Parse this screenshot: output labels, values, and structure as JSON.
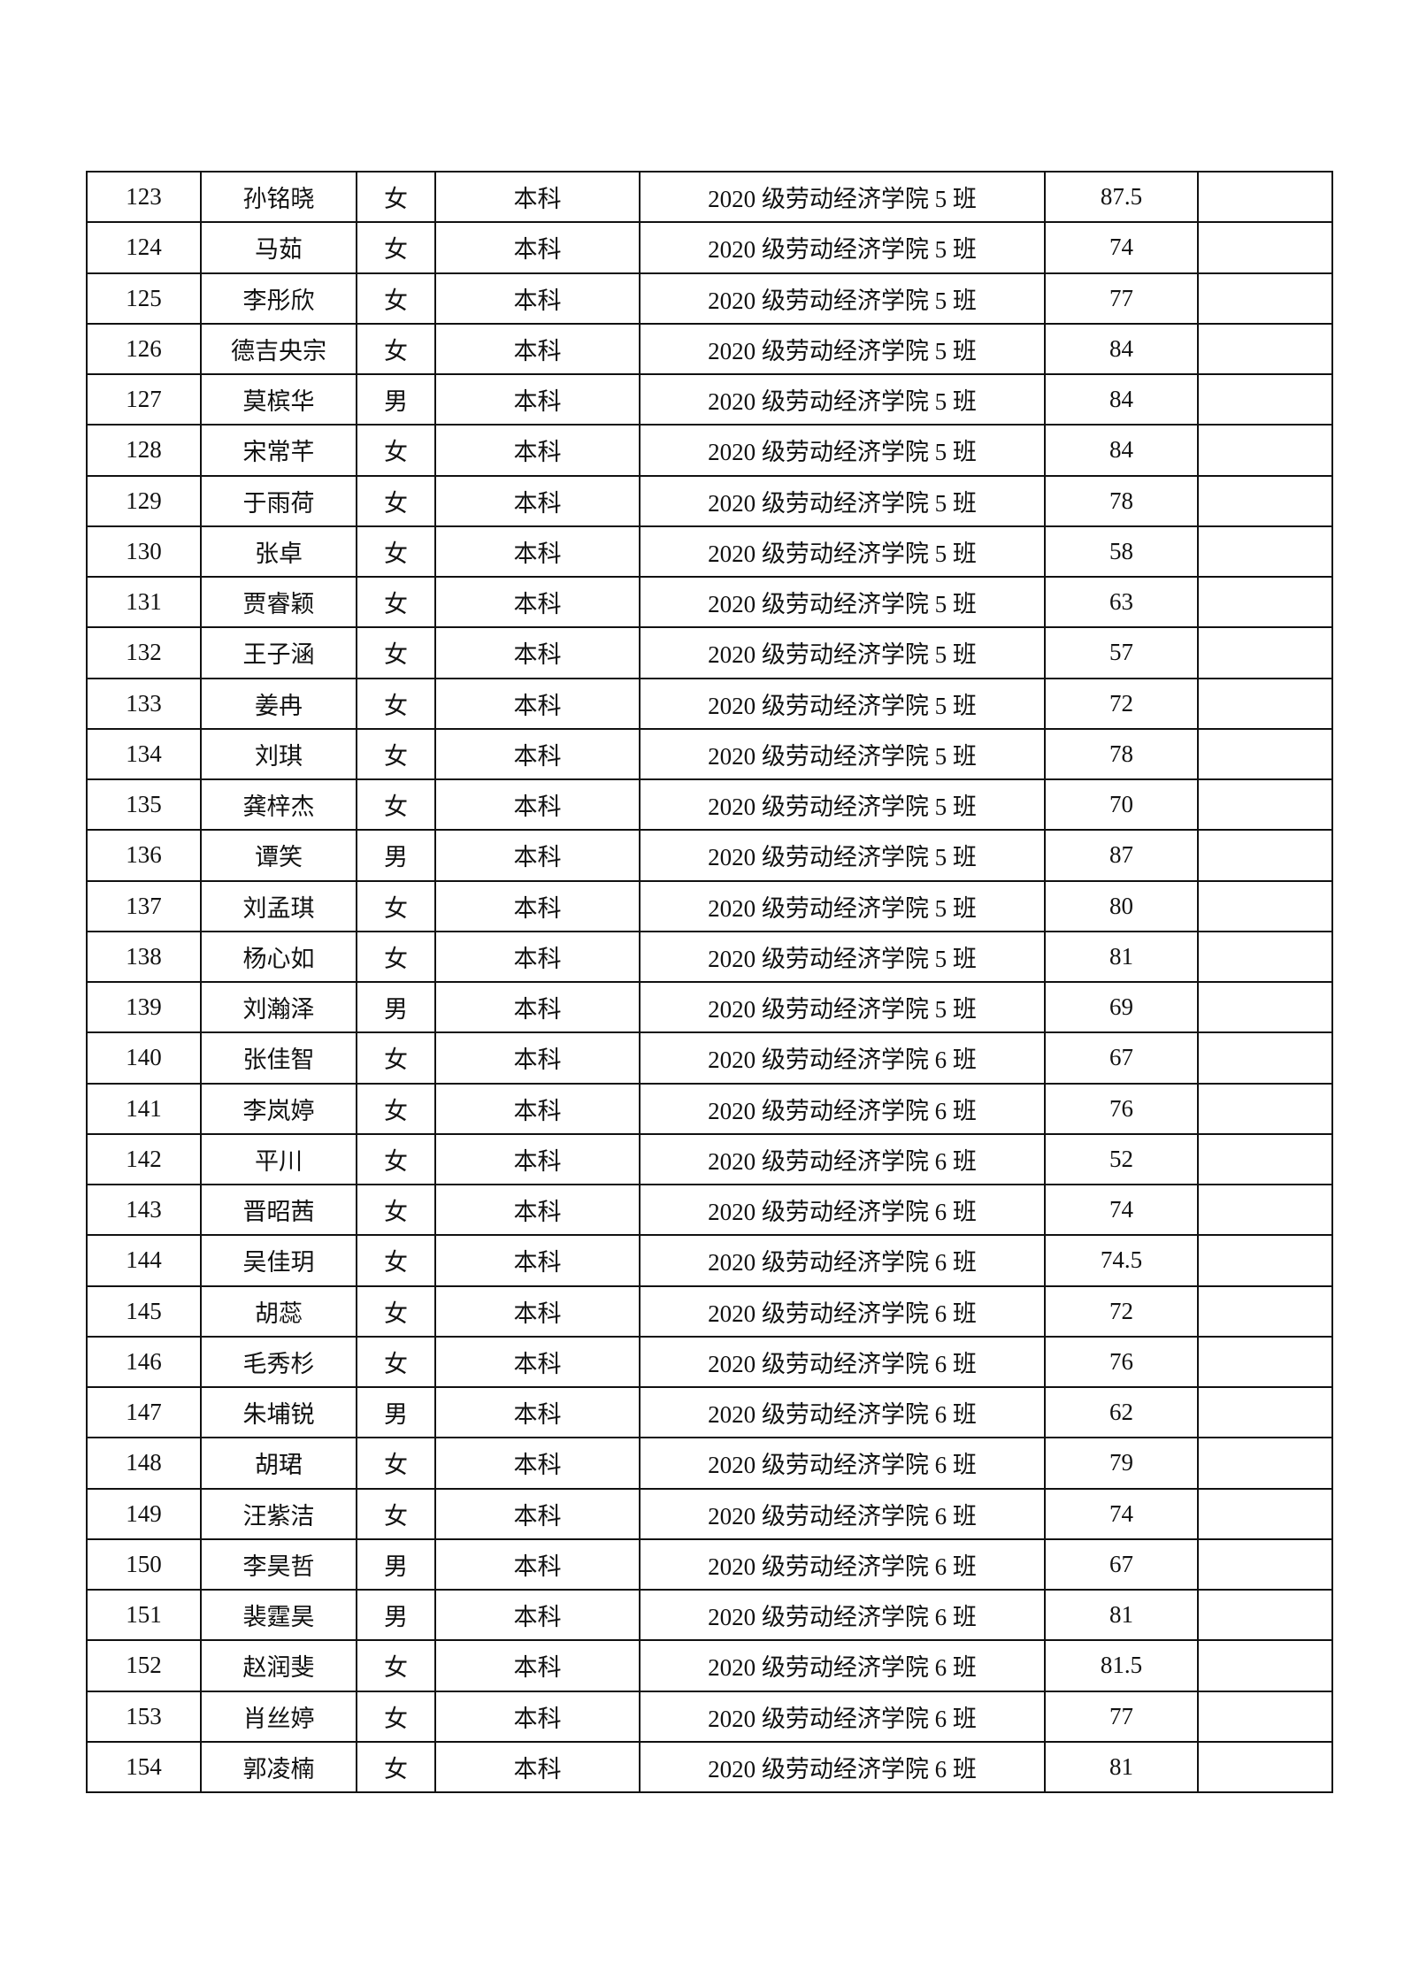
{
  "table": {
    "rows": [
      {
        "no": "123",
        "name": "孙铭晓",
        "gender": "女",
        "degree": "本科",
        "class": "2020 级劳动经济学院 5 班",
        "score": "87.5",
        "note": ""
      },
      {
        "no": "124",
        "name": "马茹",
        "gender": "女",
        "degree": "本科",
        "class": "2020 级劳动经济学院 5 班",
        "score": "74",
        "note": ""
      },
      {
        "no": "125",
        "name": "李彤欣",
        "gender": "女",
        "degree": "本科",
        "class": "2020 级劳动经济学院 5 班",
        "score": "77",
        "note": ""
      },
      {
        "no": "126",
        "name": "德吉央宗",
        "gender": "女",
        "degree": "本科",
        "class": "2020 级劳动经济学院 5 班",
        "score": "84",
        "note": ""
      },
      {
        "no": "127",
        "name": "莫槟华",
        "gender": "男",
        "degree": "本科",
        "class": "2020 级劳动经济学院 5 班",
        "score": "84",
        "note": ""
      },
      {
        "no": "128",
        "name": "宋常芊",
        "gender": "女",
        "degree": "本科",
        "class": "2020 级劳动经济学院 5 班",
        "score": "84",
        "note": ""
      },
      {
        "no": "129",
        "name": "于雨荷",
        "gender": "女",
        "degree": "本科",
        "class": "2020 级劳动经济学院 5 班",
        "score": "78",
        "note": ""
      },
      {
        "no": "130",
        "name": "张卓",
        "gender": "女",
        "degree": "本科",
        "class": "2020 级劳动经济学院 5 班",
        "score": "58",
        "note": ""
      },
      {
        "no": "131",
        "name": "贾睿颖",
        "gender": "女",
        "degree": "本科",
        "class": "2020 级劳动经济学院 5 班",
        "score": "63",
        "note": ""
      },
      {
        "no": "132",
        "name": "王子涵",
        "gender": "女",
        "degree": "本科",
        "class": "2020 级劳动经济学院 5 班",
        "score": "57",
        "note": ""
      },
      {
        "no": "133",
        "name": "姜冉",
        "gender": "女",
        "degree": "本科",
        "class": "2020 级劳动经济学院 5 班",
        "score": "72",
        "note": ""
      },
      {
        "no": "134",
        "name": "刘琪",
        "gender": "女",
        "degree": "本科",
        "class": "2020 级劳动经济学院 5 班",
        "score": "78",
        "note": ""
      },
      {
        "no": "135",
        "name": "龚梓杰",
        "gender": "女",
        "degree": "本科",
        "class": "2020 级劳动经济学院 5 班",
        "score": "70",
        "note": ""
      },
      {
        "no": "136",
        "name": "谭笑",
        "gender": "男",
        "degree": "本科",
        "class": "2020 级劳动经济学院 5 班",
        "score": "87",
        "note": ""
      },
      {
        "no": "137",
        "name": "刘孟琪",
        "gender": "女",
        "degree": "本科",
        "class": "2020 级劳动经济学院 5 班",
        "score": "80",
        "note": ""
      },
      {
        "no": "138",
        "name": "杨心如",
        "gender": "女",
        "degree": "本科",
        "class": "2020 级劳动经济学院 5 班",
        "score": "81",
        "note": ""
      },
      {
        "no": "139",
        "name": "刘瀚泽",
        "gender": "男",
        "degree": "本科",
        "class": "2020 级劳动经济学院 5 班",
        "score": "69",
        "note": ""
      },
      {
        "no": "140",
        "name": "张佳智",
        "gender": "女",
        "degree": "本科",
        "class": "2020 级劳动经济学院 6 班",
        "score": "67",
        "note": ""
      },
      {
        "no": "141",
        "name": "李岚婷",
        "gender": "女",
        "degree": "本科",
        "class": "2020 级劳动经济学院 6 班",
        "score": "76",
        "note": ""
      },
      {
        "no": "142",
        "name": "平川",
        "gender": "女",
        "degree": "本科",
        "class": "2020 级劳动经济学院 6 班",
        "score": "52",
        "note": ""
      },
      {
        "no": "143",
        "name": "晋昭茜",
        "gender": "女",
        "degree": "本科",
        "class": "2020 级劳动经济学院 6 班",
        "score": "74",
        "note": ""
      },
      {
        "no": "144",
        "name": "吴佳玥",
        "gender": "女",
        "degree": "本科",
        "class": "2020 级劳动经济学院 6 班",
        "score": "74.5",
        "note": ""
      },
      {
        "no": "145",
        "name": "胡蕊",
        "gender": "女",
        "degree": "本科",
        "class": "2020 级劳动经济学院 6 班",
        "score": "72",
        "note": ""
      },
      {
        "no": "146",
        "name": "毛秀杉",
        "gender": "女",
        "degree": "本科",
        "class": "2020 级劳动经济学院 6 班",
        "score": "76",
        "note": ""
      },
      {
        "no": "147",
        "name": "朱埔锐",
        "gender": "男",
        "degree": "本科",
        "class": "2020 级劳动经济学院 6 班",
        "score": "62",
        "note": ""
      },
      {
        "no": "148",
        "name": "胡珺",
        "gender": "女",
        "degree": "本科",
        "class": "2020 级劳动经济学院 6 班",
        "score": "79",
        "note": ""
      },
      {
        "no": "149",
        "name": "汪紫洁",
        "gender": "女",
        "degree": "本科",
        "class": "2020 级劳动经济学院 6 班",
        "score": "74",
        "note": ""
      },
      {
        "no": "150",
        "name": "李昊哲",
        "gender": "男",
        "degree": "本科",
        "class": "2020 级劳动经济学院 6 班",
        "score": "67",
        "note": ""
      },
      {
        "no": "151",
        "name": "裴霆昊",
        "gender": "男",
        "degree": "本科",
        "class": "2020 级劳动经济学院 6 班",
        "score": "81",
        "note": ""
      },
      {
        "no": "152",
        "name": "赵润斐",
        "gender": "女",
        "degree": "本科",
        "class": "2020 级劳动经济学院 6 班",
        "score": "81.5",
        "note": ""
      },
      {
        "no": "153",
        "name": "肖丝婷",
        "gender": "女",
        "degree": "本科",
        "class": "2020 级劳动经济学院 6 班",
        "score": "77",
        "note": ""
      },
      {
        "no": "154",
        "name": "郭凌楠",
        "gender": "女",
        "degree": "本科",
        "class": "2020 级劳动经济学院 6 班",
        "score": "81",
        "note": ""
      }
    ]
  }
}
